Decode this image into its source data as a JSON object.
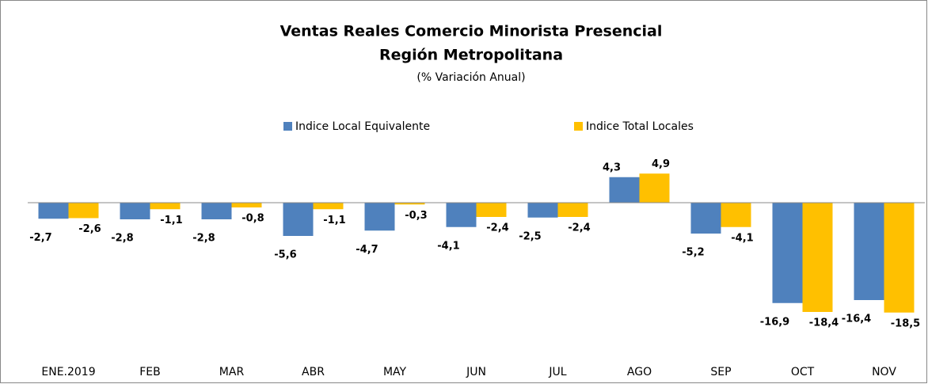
{
  "chart_data": {
    "type": "bar",
    "title": "Ventas Reales Comercio Minorista Presencial",
    "subtitle": "Región Metropolitana",
    "annotation": "(% Variación Anual)",
    "categories": [
      "ENE.2019",
      "FEB",
      "MAR",
      "ABR",
      "MAY",
      "JUN",
      "JUL",
      "AGO",
      "SEP",
      "OCT",
      "NOV"
    ],
    "series": [
      {
        "name": "Indice Local Equivalente",
        "color": "#4f81bd",
        "values": [
          -2.7,
          -2.8,
          -2.8,
          -5.6,
          -4.7,
          -4.1,
          -2.5,
          4.3,
          -5.2,
          -16.9,
          -16.4
        ],
        "value_labels": [
          "-2,7",
          "-2,8",
          "-2,8",
          "-5,6",
          "-4,7",
          "-4,1",
          "-2,5",
          "4,3",
          "-5,2",
          "-16,9",
          "-16,4"
        ]
      },
      {
        "name": "Indice Total Locales",
        "color": "#ffc000",
        "values": [
          -2.6,
          -1.1,
          -0.8,
          -1.1,
          -0.3,
          -2.4,
          -2.4,
          4.9,
          -4.1,
          -18.4,
          -18.5
        ],
        "value_labels": [
          "-2,6",
          "-1,1",
          "-0,8",
          "-1,1",
          "-0,3",
          "-2,4",
          "-2,4",
          "4,9",
          "-4,1",
          "-18,4",
          "-18,5"
        ]
      }
    ]
  }
}
